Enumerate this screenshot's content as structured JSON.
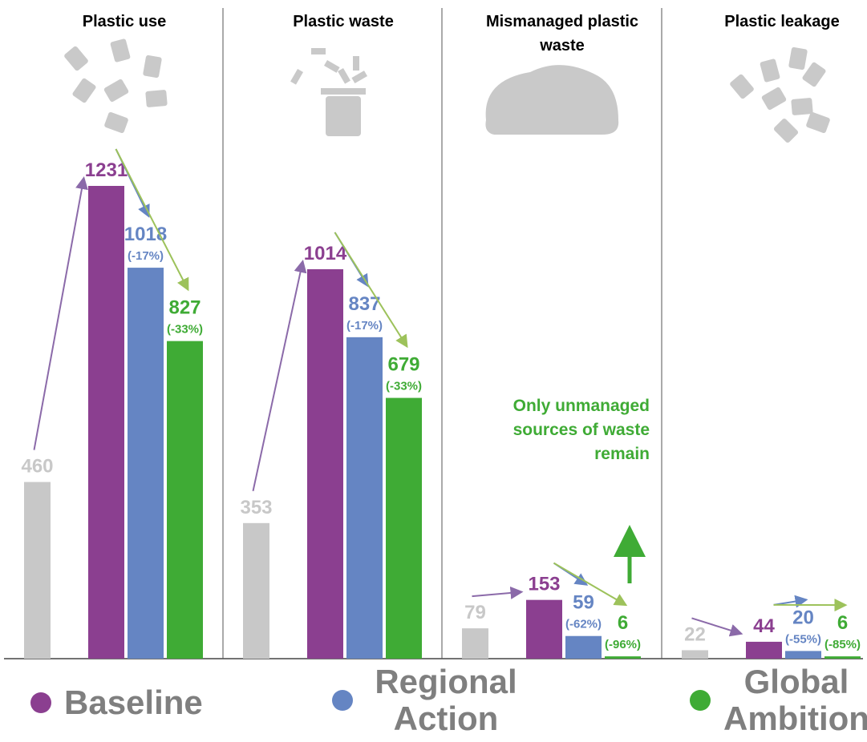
{
  "chart_data": [
    {
      "type": "bar",
      "title": "Plastic use",
      "values": [
        460,
        1231,
        1018,
        827
      ],
      "change_labels": [
        "(-17%)",
        "(-33%)"
      ]
    },
    {
      "type": "bar",
      "title": "Plastic waste",
      "values": [
        353,
        1014,
        837,
        679
      ],
      "change_labels": [
        "(-17%)",
        "(-33%)"
      ]
    },
    {
      "type": "bar",
      "title": "Mismanaged plastic waste",
      "values": [
        79,
        153,
        59,
        6
      ],
      "change_labels": [
        "(-62%)",
        "(-96%)"
      ],
      "annotation": "Only unmanaged sources of waste remain"
    },
    {
      "type": "bar",
      "title": "Plastic leakage",
      "values": [
        22,
        44,
        20,
        6
      ],
      "change_labels": [
        "(-55%)",
        "(-85%)"
      ]
    }
  ],
  "base_color": "#c8c8c8",
  "legend": {
    "position": "bottom",
    "items": [
      {
        "name": "Baseline",
        "color": "#8b3f90"
      },
      {
        "name": "Regional Action",
        "color": "#6585c3"
      },
      {
        "name": "Global Ambition",
        "color": "#3fab35"
      }
    ]
  }
}
